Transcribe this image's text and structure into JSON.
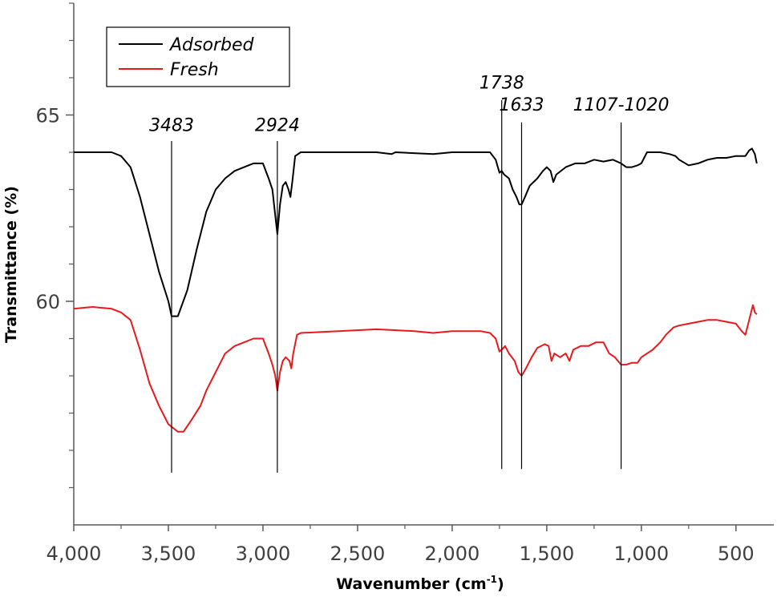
{
  "chart_data": {
    "type": "line",
    "xlabel_main": "Wavenumber (cm",
    "xlabel_sup": "-1",
    "xlabel_end": ")",
    "ylabel": "Transmittance (%)",
    "xlim": [
      4000,
      300
    ],
    "ylim": [
      54,
      68
    ],
    "x_reversed": true,
    "x_ticks": [
      4000,
      3500,
      3000,
      2500,
      2000,
      1500,
      1000,
      500
    ],
    "x_tick_labels": [
      "4,000",
      "3,500",
      "3,000",
      "2,500",
      "2,000",
      "1,500",
      "1,000",
      "500"
    ],
    "y_major_ticks": [
      60,
      65
    ],
    "y_tick_labels": [
      "60",
      "65"
    ],
    "y_minor_ticks": [
      55,
      56,
      57,
      58,
      59,
      61,
      62,
      63,
      64,
      66,
      67,
      68
    ],
    "legend": {
      "position": "top-left",
      "entries": [
        "Adsorbed",
        "Fresh"
      ]
    },
    "series": [
      {
        "name": "Adsorbed",
        "color": "#000000",
        "points": [
          [
            4000,
            64.0
          ],
          [
            3900,
            64.0
          ],
          [
            3800,
            64.0
          ],
          [
            3750,
            63.9
          ],
          [
            3700,
            63.6
          ],
          [
            3650,
            62.8
          ],
          [
            3600,
            61.8
          ],
          [
            3550,
            60.8
          ],
          [
            3500,
            60.0
          ],
          [
            3483,
            59.6
          ],
          [
            3450,
            59.6
          ],
          [
            3400,
            60.3
          ],
          [
            3350,
            61.4
          ],
          [
            3300,
            62.4
          ],
          [
            3250,
            63.0
          ],
          [
            3200,
            63.3
          ],
          [
            3150,
            63.5
          ],
          [
            3100,
            63.6
          ],
          [
            3050,
            63.7
          ],
          [
            3000,
            63.7
          ],
          [
            2970,
            63.3
          ],
          [
            2950,
            63.0
          ],
          [
            2935,
            62.3
          ],
          [
            2924,
            61.8
          ],
          [
            2910,
            62.6
          ],
          [
            2895,
            63.1
          ],
          [
            2880,
            63.2
          ],
          [
            2865,
            63.0
          ],
          [
            2855,
            62.8
          ],
          [
            2845,
            63.2
          ],
          [
            2830,
            63.9
          ],
          [
            2800,
            64.0
          ],
          [
            2600,
            64.0
          ],
          [
            2400,
            64.0
          ],
          [
            2320,
            63.95
          ],
          [
            2300,
            64.0
          ],
          [
            2100,
            63.95
          ],
          [
            2000,
            64.0
          ],
          [
            1850,
            64.0
          ],
          [
            1800,
            64.0
          ],
          [
            1770,
            63.8
          ],
          [
            1750,
            63.45
          ],
          [
            1738,
            63.5
          ],
          [
            1725,
            63.4
          ],
          [
            1700,
            63.3
          ],
          [
            1680,
            63.0
          ],
          [
            1660,
            62.8
          ],
          [
            1645,
            62.6
          ],
          [
            1633,
            62.6
          ],
          [
            1615,
            62.8
          ],
          [
            1590,
            63.1
          ],
          [
            1550,
            63.3
          ],
          [
            1520,
            63.5
          ],
          [
            1500,
            63.6
          ],
          [
            1480,
            63.5
          ],
          [
            1465,
            63.2
          ],
          [
            1450,
            63.4
          ],
          [
            1400,
            63.6
          ],
          [
            1350,
            63.7
          ],
          [
            1300,
            63.7
          ],
          [
            1250,
            63.8
          ],
          [
            1200,
            63.75
          ],
          [
            1150,
            63.8
          ],
          [
            1107,
            63.7
          ],
          [
            1080,
            63.6
          ],
          [
            1050,
            63.6
          ],
          [
            1020,
            63.65
          ],
          [
            1000,
            63.7
          ],
          [
            970,
            64.0
          ],
          [
            950,
            64.0
          ],
          [
            900,
            64.0
          ],
          [
            850,
            63.95
          ],
          [
            820,
            63.9
          ],
          [
            800,
            63.8
          ],
          [
            750,
            63.65
          ],
          [
            700,
            63.7
          ],
          [
            650,
            63.8
          ],
          [
            600,
            63.85
          ],
          [
            550,
            63.85
          ],
          [
            500,
            63.9
          ],
          [
            450,
            63.9
          ],
          [
            430,
            64.05
          ],
          [
            415,
            64.1
          ],
          [
            400,
            63.95
          ],
          [
            390,
            63.7
          ]
        ]
      },
      {
        "name": "Fresh",
        "color": "#e8191c",
        "points": [
          [
            4000,
            59.8
          ],
          [
            3900,
            59.85
          ],
          [
            3800,
            59.8
          ],
          [
            3750,
            59.7
          ],
          [
            3700,
            59.5
          ],
          [
            3650,
            58.7
          ],
          [
            3600,
            57.8
          ],
          [
            3550,
            57.2
          ],
          [
            3500,
            56.7
          ],
          [
            3450,
            56.5
          ],
          [
            3420,
            56.5
          ],
          [
            3380,
            56.8
          ],
          [
            3330,
            57.2
          ],
          [
            3300,
            57.6
          ],
          [
            3250,
            58.1
          ],
          [
            3200,
            58.6
          ],
          [
            3150,
            58.8
          ],
          [
            3100,
            58.9
          ],
          [
            3050,
            59.0
          ],
          [
            3000,
            59.0
          ],
          [
            2970,
            58.6
          ],
          [
            2950,
            58.3
          ],
          [
            2935,
            58.0
          ],
          [
            2924,
            57.6
          ],
          [
            2910,
            58.1
          ],
          [
            2895,
            58.4
          ],
          [
            2880,
            58.5
          ],
          [
            2860,
            58.4
          ],
          [
            2850,
            58.2
          ],
          [
            2840,
            58.6
          ],
          [
            2820,
            59.1
          ],
          [
            2800,
            59.15
          ],
          [
            2600,
            59.2
          ],
          [
            2400,
            59.25
          ],
          [
            2200,
            59.2
          ],
          [
            2100,
            59.15
          ],
          [
            2000,
            59.2
          ],
          [
            1850,
            59.2
          ],
          [
            1800,
            59.15
          ],
          [
            1770,
            59.0
          ],
          [
            1750,
            58.65
          ],
          [
            1738,
            58.7
          ],
          [
            1720,
            58.8
          ],
          [
            1700,
            58.6
          ],
          [
            1670,
            58.4
          ],
          [
            1650,
            58.1
          ],
          [
            1633,
            58.0
          ],
          [
            1610,
            58.2
          ],
          [
            1580,
            58.5
          ],
          [
            1550,
            58.75
          ],
          [
            1510,
            58.85
          ],
          [
            1490,
            58.8
          ],
          [
            1475,
            58.4
          ],
          [
            1460,
            58.6
          ],
          [
            1430,
            58.5
          ],
          [
            1400,
            58.6
          ],
          [
            1380,
            58.4
          ],
          [
            1360,
            58.7
          ],
          [
            1320,
            58.8
          ],
          [
            1280,
            58.8
          ],
          [
            1240,
            58.9
          ],
          [
            1200,
            58.9
          ],
          [
            1170,
            58.6
          ],
          [
            1140,
            58.5
          ],
          [
            1107,
            58.3
          ],
          [
            1080,
            58.3
          ],
          [
            1050,
            58.35
          ],
          [
            1020,
            58.35
          ],
          [
            1000,
            58.5
          ],
          [
            970,
            58.6
          ],
          [
            940,
            58.7
          ],
          [
            900,
            58.9
          ],
          [
            870,
            59.1
          ],
          [
            830,
            59.3
          ],
          [
            800,
            59.35
          ],
          [
            750,
            59.4
          ],
          [
            700,
            59.45
          ],
          [
            650,
            59.5
          ],
          [
            600,
            59.5
          ],
          [
            550,
            59.45
          ],
          [
            500,
            59.4
          ],
          [
            470,
            59.2
          ],
          [
            450,
            59.1
          ],
          [
            430,
            59.5
          ],
          [
            410,
            59.9
          ],
          [
            400,
            59.7
          ],
          [
            390,
            59.65
          ]
        ]
      }
    ],
    "annotations": [
      {
        "label": "3483",
        "x": 3483,
        "line_top": 64.3,
        "line_bottom": 55.4,
        "label_y": 64.35
      },
      {
        "label": "2924",
        "x": 2924,
        "line_top": 64.3,
        "line_bottom": 55.4,
        "label_y": 64.35
      },
      {
        "label": "1738",
        "x": 1738,
        "line_top": 65.4,
        "line_bottom": 55.5,
        "label_y": 65.5
      },
      {
        "label": "1633",
        "x": 1633,
        "line_top": 64.8,
        "line_bottom": 55.5,
        "label_y": 64.9
      },
      {
        "label": "1107-1020",
        "x": 1107,
        "line_top": 64.8,
        "line_bottom": 55.5,
        "label_y": 64.9
      }
    ]
  }
}
